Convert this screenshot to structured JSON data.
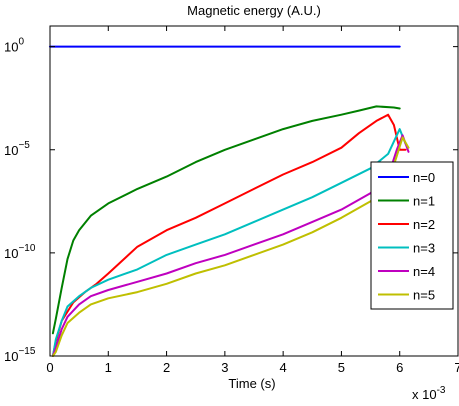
{
  "chart_data": {
    "type": "line",
    "title": "Magnetic energy (A.U.)",
    "xlabel": "Time (s)",
    "ylabel": "",
    "x_multiplier_label": "x 10",
    "x_multiplier_exp": "-3",
    "xlim": [
      0,
      7
    ],
    "ylim_log10": [
      -15,
      1
    ],
    "y_scale": "log",
    "x_ticks": [
      0,
      1,
      2,
      3,
      4,
      5,
      6,
      7
    ],
    "x_tick_labels": [
      "0",
      "1",
      "2",
      "3",
      "4",
      "5",
      "6",
      "7"
    ],
    "y_ticks_log10": [
      0,
      -5,
      -10,
      -15
    ],
    "y_tick_base": "10",
    "y_tick_exps": [
      "0",
      "−5",
      "−10",
      "−15"
    ],
    "grid": false,
    "legend_position": "right",
    "series": [
      {
        "name": "n=0",
        "color": "#0000ff",
        "points": [
          [
            0.0,
            0.0
          ],
          [
            1.0,
            0.0
          ],
          [
            2.0,
            0.0
          ],
          [
            3.0,
            0.0
          ],
          [
            4.0,
            0.0
          ],
          [
            5.0,
            0.0
          ],
          [
            6.0,
            0.0
          ]
        ]
      },
      {
        "name": "n=1",
        "color": "#008000",
        "points": [
          [
            0.05,
            -13.9
          ],
          [
            0.1,
            -13.2
          ],
          [
            0.2,
            -11.7
          ],
          [
            0.3,
            -10.3
          ],
          [
            0.4,
            -9.4
          ],
          [
            0.5,
            -8.9
          ],
          [
            0.7,
            -8.2
          ],
          [
            1.0,
            -7.6
          ],
          [
            1.5,
            -6.9
          ],
          [
            2.0,
            -6.3
          ],
          [
            2.5,
            -5.6
          ],
          [
            3.0,
            -5.0
          ],
          [
            3.5,
            -4.5
          ],
          [
            4.0,
            -4.0
          ],
          [
            4.5,
            -3.6
          ],
          [
            5.0,
            -3.3
          ],
          [
            5.3,
            -3.1
          ],
          [
            5.6,
            -2.9
          ],
          [
            5.9,
            -2.95
          ],
          [
            6.0,
            -3.0
          ]
        ]
      },
      {
        "name": "n=2",
        "color": "#ff0000",
        "points": [
          [
            0.05,
            -15.0
          ],
          [
            0.1,
            -14.3
          ],
          [
            0.2,
            -13.3
          ],
          [
            0.4,
            -12.4
          ],
          [
            0.6,
            -11.9
          ],
          [
            0.8,
            -11.5
          ],
          [
            1.0,
            -11.0
          ],
          [
            1.5,
            -9.7
          ],
          [
            2.0,
            -8.9
          ],
          [
            2.5,
            -8.3
          ],
          [
            3.0,
            -7.6
          ],
          [
            3.5,
            -6.9
          ],
          [
            4.0,
            -6.2
          ],
          [
            4.5,
            -5.6
          ],
          [
            5.0,
            -4.9
          ],
          [
            5.3,
            -4.2
          ],
          [
            5.6,
            -3.6
          ],
          [
            5.8,
            -3.3
          ],
          [
            5.9,
            -3.8
          ],
          [
            6.0,
            -5.0
          ],
          [
            6.1,
            -5.0
          ]
        ]
      },
      {
        "name": "n=3",
        "color": "#00bfbf",
        "points": [
          [
            0.05,
            -15.0
          ],
          [
            0.1,
            -14.2
          ],
          [
            0.2,
            -13.3
          ],
          [
            0.3,
            -12.6
          ],
          [
            0.5,
            -12.1
          ],
          [
            0.7,
            -11.7
          ],
          [
            1.0,
            -11.3
          ],
          [
            1.5,
            -10.8
          ],
          [
            2.0,
            -10.1
          ],
          [
            2.5,
            -9.6
          ],
          [
            3.0,
            -9.1
          ],
          [
            3.5,
            -8.5
          ],
          [
            4.0,
            -7.9
          ],
          [
            4.5,
            -7.3
          ],
          [
            5.0,
            -6.6
          ],
          [
            5.5,
            -5.9
          ],
          [
            5.8,
            -5.2
          ],
          [
            6.0,
            -4.0
          ],
          [
            6.1,
            -4.7
          ]
        ]
      },
      {
        "name": "n=4",
        "color": "#bf00bf",
        "points": [
          [
            0.05,
            -15.0
          ],
          [
            0.1,
            -14.6
          ],
          [
            0.2,
            -13.7
          ],
          [
            0.3,
            -13.1
          ],
          [
            0.5,
            -12.5
          ],
          [
            0.7,
            -12.1
          ],
          [
            1.0,
            -11.8
          ],
          [
            1.5,
            -11.4
          ],
          [
            2.0,
            -11.0
          ],
          [
            2.5,
            -10.5
          ],
          [
            3.0,
            -10.1
          ],
          [
            3.5,
            -9.6
          ],
          [
            4.0,
            -9.1
          ],
          [
            4.5,
            -8.5
          ],
          [
            5.0,
            -7.9
          ],
          [
            5.5,
            -7.1
          ],
          [
            5.8,
            -6.3
          ],
          [
            5.95,
            -5.0
          ],
          [
            6.05,
            -4.3
          ],
          [
            6.15,
            -5.1
          ]
        ]
      },
      {
        "name": "n=5",
        "color": "#bfbf00",
        "points": [
          [
            0.05,
            -15.0
          ],
          [
            0.1,
            -14.8
          ],
          [
            0.2,
            -14.0
          ],
          [
            0.3,
            -13.4
          ],
          [
            0.5,
            -12.9
          ],
          [
            0.7,
            -12.5
          ],
          [
            1.0,
            -12.2
          ],
          [
            1.5,
            -11.9
          ],
          [
            2.0,
            -11.5
          ],
          [
            2.5,
            -11.0
          ],
          [
            3.0,
            -10.6
          ],
          [
            3.5,
            -10.1
          ],
          [
            4.0,
            -9.6
          ],
          [
            4.5,
            -9.0
          ],
          [
            5.0,
            -8.3
          ],
          [
            5.5,
            -7.5
          ],
          [
            5.8,
            -6.6
          ],
          [
            5.95,
            -5.3
          ],
          [
            6.05,
            -4.4
          ],
          [
            6.15,
            -4.9
          ]
        ]
      }
    ]
  }
}
